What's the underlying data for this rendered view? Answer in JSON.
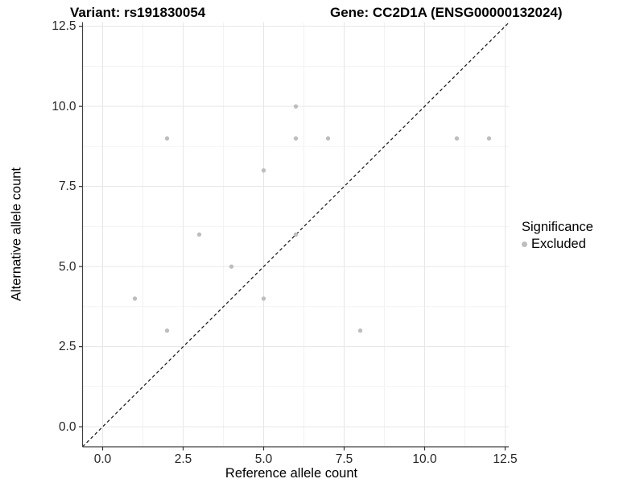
{
  "chart_data": {
    "type": "scatter",
    "title_left": "Variant: rs191830054",
    "title_right": "Gene: CC2D1A (ENSG00000132024)",
    "xlabel": "Reference allele count",
    "ylabel": "Alternative allele count",
    "x_ticks": [
      "0.0",
      "2.5",
      "5.0",
      "7.5",
      "10.0",
      "12.5"
    ],
    "x_tick_values": [
      0,
      2.5,
      5,
      7.5,
      10,
      12.5
    ],
    "y_ticks": [
      "0.0",
      "2.5",
      "5.0",
      "7.5",
      "10.0",
      "12.5"
    ],
    "y_tick_values": [
      0,
      2.5,
      5,
      7.5,
      10,
      12.5
    ],
    "minor_tick_values": [
      1.25,
      3.75,
      6.25,
      8.75,
      11.25
    ],
    "xlim": [
      -0.625,
      12.6125
    ],
    "ylim": [
      -0.625,
      12.63
    ],
    "grid": "major-and-minor",
    "legend_position": "right",
    "series": [
      {
        "name": "Excluded",
        "color": "#bebebe",
        "points": [
          [
            1,
            4
          ],
          [
            2,
            3
          ],
          [
            2,
            9
          ],
          [
            3,
            6
          ],
          [
            4,
            5
          ],
          [
            5,
            4
          ],
          [
            5,
            8
          ],
          [
            6,
            6
          ],
          [
            6,
            9
          ],
          [
            6,
            10
          ],
          [
            7,
            9
          ],
          [
            8,
            3
          ],
          [
            11,
            9
          ],
          [
            12,
            9
          ]
        ]
      }
    ],
    "identity_line": {
      "type": "abline",
      "slope": 1,
      "intercept": 0,
      "style": "dashed",
      "color": "#111111"
    },
    "legend": {
      "title": "Significance",
      "items": [
        {
          "label": "Excluded",
          "color": "#bebebe"
        }
      ]
    },
    "colors": {
      "point": "#bebebe",
      "major_grid": "#e6e6e6",
      "minor_grid": "#f2f2f2",
      "axis_line": "#404040",
      "tick_mark": "#333333",
      "tick_text": "#262626",
      "panel_background": "#ffffff"
    }
  }
}
